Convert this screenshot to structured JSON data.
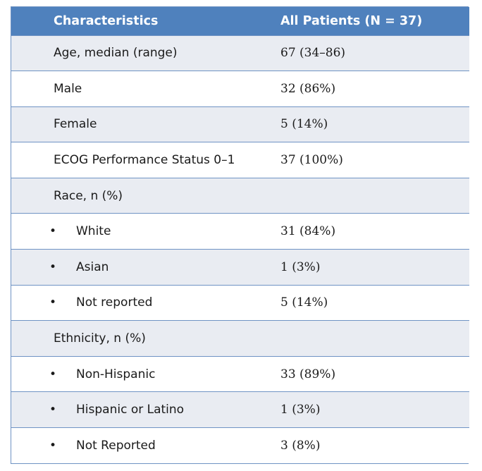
{
  "table": {
    "headers": [
      "Characteristics",
      "All Patients (N = 37)"
    ],
    "rows": [
      {
        "label": "Age, median (range)",
        "value": "67 (34–86)",
        "bullet": false
      },
      {
        "label": "Male",
        "value": "32 (86%)",
        "bullet": false
      },
      {
        "label": "Female",
        "value": "5 (14%)",
        "bullet": false
      },
      {
        "label": "ECOG Performance Status 0–1",
        "value": "37 (100%)",
        "bullet": false
      },
      {
        "label": "Race, n (%)",
        "value": "",
        "bullet": false
      },
      {
        "label": "White",
        "value": "31 (84%)",
        "bullet": true
      },
      {
        "label": "Asian",
        "value": "1 (3%)",
        "bullet": true
      },
      {
        "label": "Not reported",
        "value": "5 (14%)",
        "bullet": true
      },
      {
        "label": "Ethnicity, n (%)",
        "value": "",
        "bullet": false
      },
      {
        "label": "Non-Hispanic",
        "value": "33 (89%)",
        "bullet": true
      },
      {
        "label": "Hispanic or Latino",
        "value": "1 (3%)",
        "bullet": true
      },
      {
        "label": "Not Reported",
        "value": "3 (8%)",
        "bullet": true
      }
    ],
    "bullet_char": "•",
    "colors": {
      "header_bg": "#4f81bd",
      "header_text": "#ffffff",
      "row_shade": "#e9ecf2",
      "row_plain": "#ffffff",
      "border": "#6f93c4"
    }
  }
}
